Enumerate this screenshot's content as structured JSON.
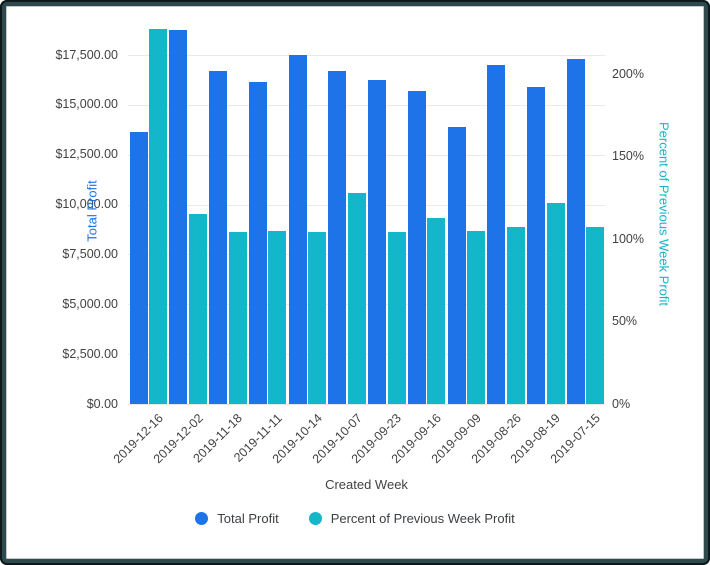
{
  "colors": {
    "total_profit_bar": "#1E73E8",
    "percent_bar": "#14B6C9",
    "left_axis_title_color": "#1A73E8",
    "right_axis_title_color": "#12B5CB",
    "tick_label_color": "#424242",
    "gridline_color": "#EAEAEA",
    "frame_outer": "#0E191B",
    "frame_inner": "#2E4A4C"
  },
  "chart_data": {
    "type": "bar",
    "title": "",
    "xlabel": "Created Week",
    "grid": true,
    "legend_position": "bottom",
    "categories": [
      "2019-12-16",
      "2019-12-02",
      "2019-11-18",
      "2019-11-11",
      "2019-10-14",
      "2019-10-07",
      "2019-09-23",
      "2019-09-16",
      "2019-09-09",
      "2019-08-26",
      "2019-08-19",
      "2019-07-15"
    ],
    "series": [
      {
        "name": "Total Profit",
        "axis": "left",
        "color": "#1E73E8",
        "values": [
          13650,
          18750,
          16700,
          16150,
          17500,
          16700,
          16250,
          15700,
          13900,
          17000,
          15900,
          17300
        ]
      },
      {
        "name": "Percent of Previous Week Profit",
        "axis": "right",
        "color": "#14B6C9",
        "values": [
          227,
          115,
          104,
          105,
          104,
          128,
          104,
          113,
          105,
          107,
          122,
          107
        ]
      }
    ],
    "left_axis": {
      "title": "Total Profit",
      "tick_values": [
        0,
        2500,
        5000,
        7500,
        10000,
        12500,
        15000,
        17500
      ],
      "tick_labels": [
        "$0.00",
        "$2,500.00",
        "$5,000.00",
        "$7,500.00",
        "$10,000.00",
        "$12,500.00",
        "$15,000.00",
        "$17,500.00"
      ],
      "range_shown": [
        0,
        17500
      ]
    },
    "right_axis": {
      "title": "Percent of Previous Week Profit",
      "tick_values": [
        0,
        50,
        100,
        150,
        200
      ],
      "tick_labels": [
        "0%",
        "50%",
        "100%",
        "150%",
        "200%"
      ],
      "range_shown": [
        0,
        200
      ]
    }
  }
}
